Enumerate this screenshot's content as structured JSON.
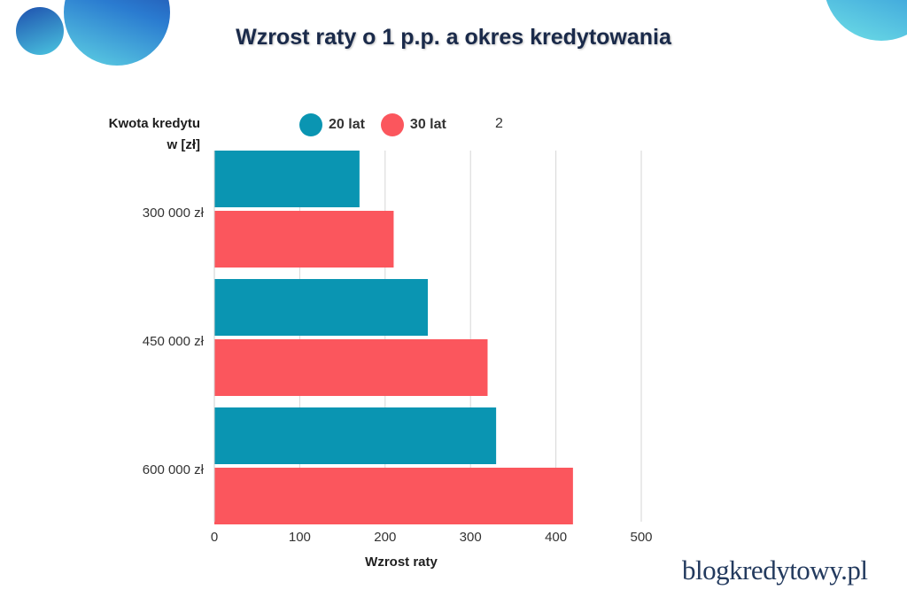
{
  "title": "Wzrost raty o 1 p.p. a okres kredytowania",
  "brand": "blogkredytowy.pl",
  "stray_label": "2",
  "colors": {
    "20 lat": "#0a95b2",
    "30 lat": "#fb565d",
    "title": "#1a2a4a"
  },
  "chart_data": {
    "type": "bar",
    "orientation": "horizontal",
    "title": "Wzrost raty o 1 p.p. a okres kredytowania",
    "ylabel": "Kwota kredytu w [zł]",
    "ylabel_lines": [
      "Kwota kredytu",
      "w [zł]"
    ],
    "xlabel": "Wzrost raty",
    "categories": [
      "300 000 zł",
      "450 000 zł",
      "600 000 zł"
    ],
    "series": [
      {
        "name": "20 lat",
        "values": [
          170,
          250,
          330
        ]
      },
      {
        "name": "30 lat",
        "values": [
          210,
          320,
          420
        ]
      }
    ],
    "xlim": [
      0,
      500
    ],
    "xticks": [
      0,
      100,
      200,
      300,
      400,
      500
    ],
    "grid": true,
    "legend": "top"
  }
}
